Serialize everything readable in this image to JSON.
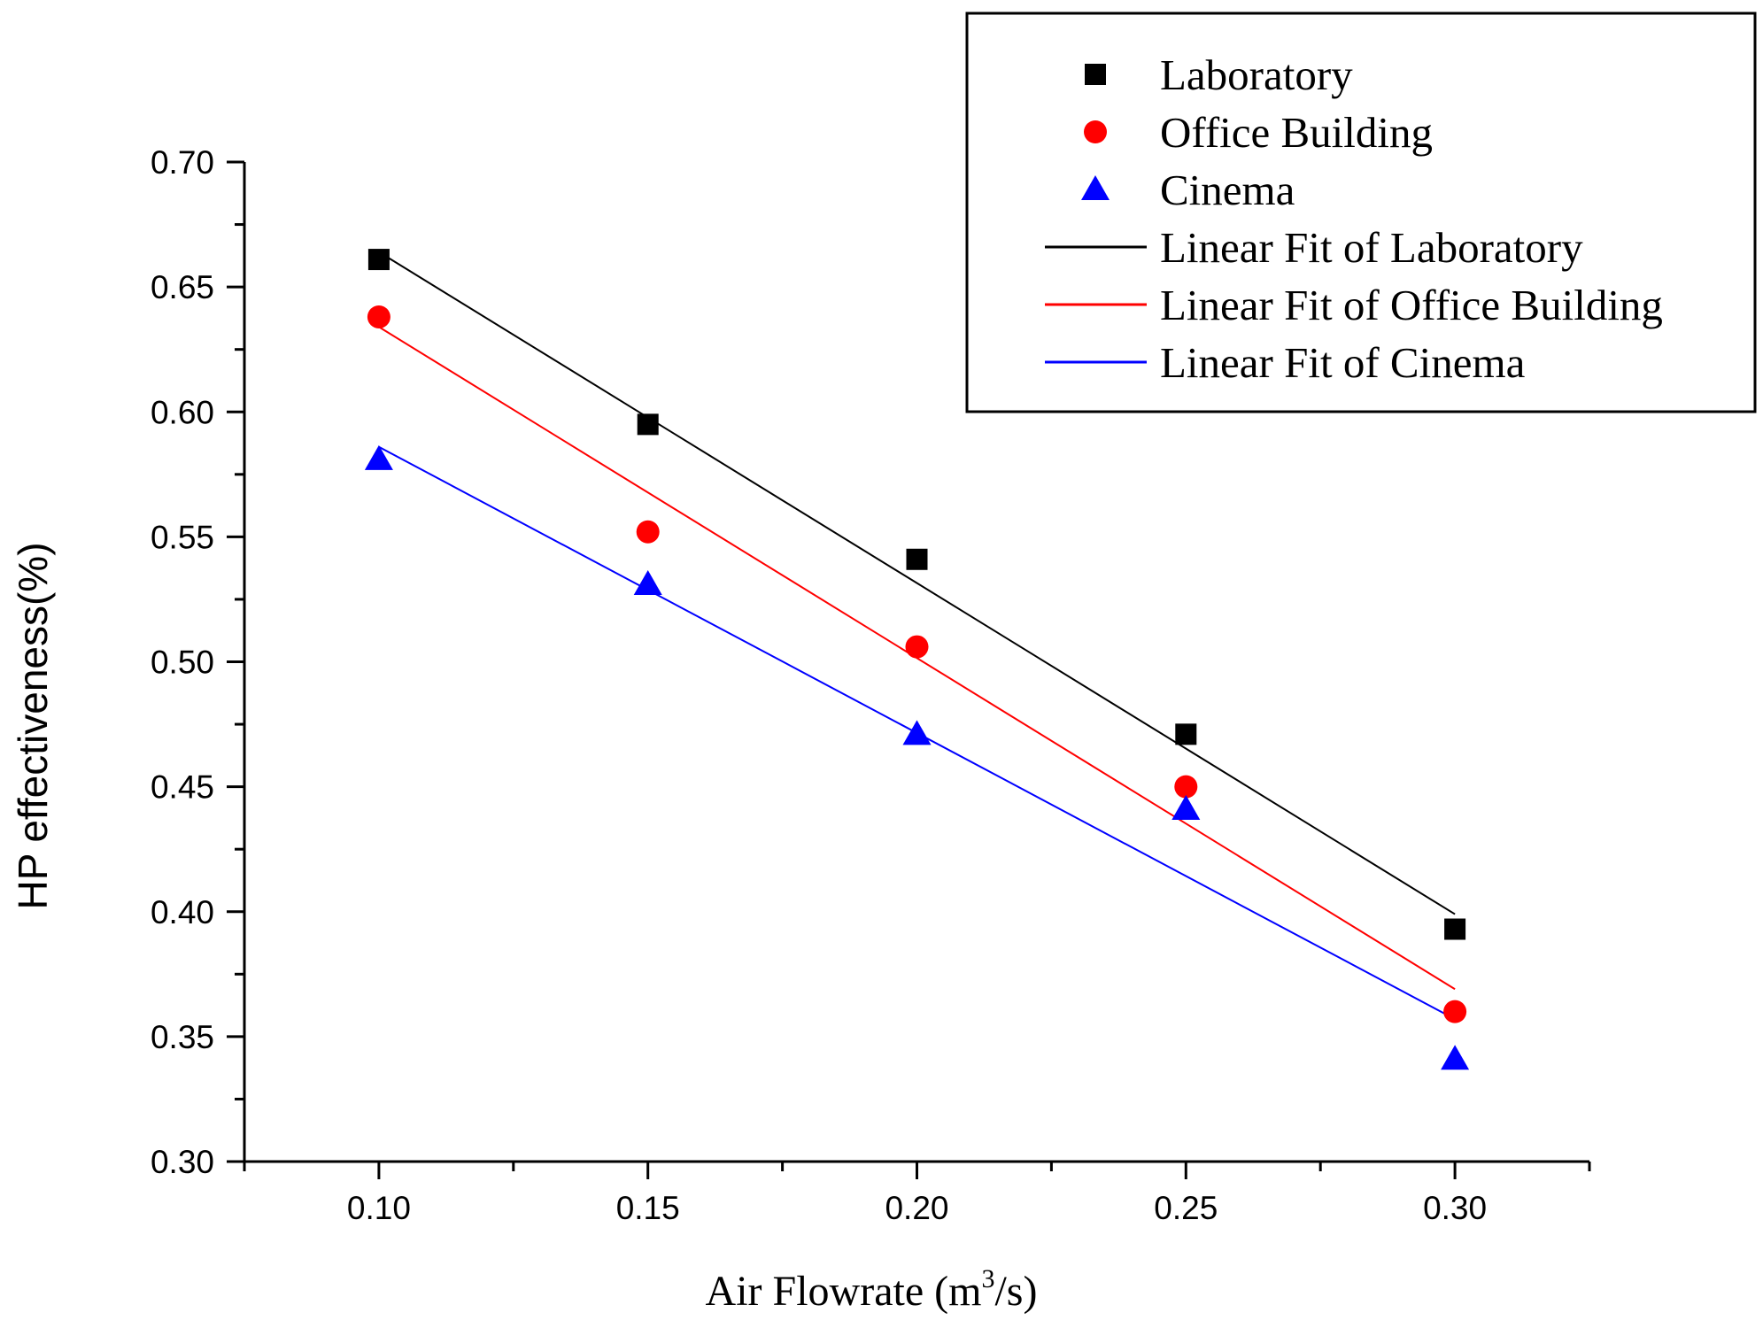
{
  "chart_data": {
    "type": "scatter",
    "xlabel_prefix": "Air Flowrate (m",
    "xlabel_sup": "3",
    "xlabel_suffix": "/s)",
    "ylabel": "HP effectiveness(%)",
    "xlim": [
      0.075,
      0.325
    ],
    "ylim": [
      0.3,
      0.7
    ],
    "x_ticks": [
      0.1,
      0.15,
      0.2,
      0.25,
      0.3
    ],
    "x_tick_labels": [
      "0.10",
      "0.15",
      "0.20",
      "0.25",
      "0.30"
    ],
    "y_ticks": [
      0.3,
      0.35,
      0.4,
      0.45,
      0.5,
      0.55,
      0.6,
      0.65,
      0.7
    ],
    "y_tick_labels": [
      "0.30",
      "0.35",
      "0.40",
      "0.45",
      "0.50",
      "0.55",
      "0.60",
      "0.65",
      "0.70"
    ],
    "legend_position": "top-right",
    "series": [
      {
        "name": "Laboratory",
        "marker": "square",
        "color": "#000000",
        "x": [
          0.1,
          0.15,
          0.2,
          0.25,
          0.3
        ],
        "y": [
          0.661,
          0.595,
          0.541,
          0.471,
          0.393
        ]
      },
      {
        "name": "Office Building",
        "marker": "circle",
        "color": "#ff0000",
        "x": [
          0.1,
          0.15,
          0.2,
          0.25,
          0.3
        ],
        "y": [
          0.638,
          0.552,
          0.506,
          0.45,
          0.36
        ]
      },
      {
        "name": "Cinema",
        "marker": "triangle",
        "color": "#0000ff",
        "x": [
          0.1,
          0.15,
          0.2,
          0.25,
          0.3
        ],
        "y": [
          0.581,
          0.531,
          0.471,
          0.441,
          0.341
        ]
      }
    ],
    "fits": [
      {
        "name": "Linear Fit of Laboratory",
        "color": "#000000",
        "x": [
          0.1,
          0.3
        ],
        "y": [
          0.664,
          0.399
        ]
      },
      {
        "name": "Linear Fit of Office Building",
        "color": "#ff0000",
        "x": [
          0.1,
          0.3
        ],
        "y": [
          0.634,
          0.369
        ]
      },
      {
        "name": "Linear Fit of Cinema",
        "color": "#0000ff",
        "x": [
          0.1,
          0.3
        ],
        "y": [
          0.586,
          0.357
        ]
      }
    ]
  }
}
